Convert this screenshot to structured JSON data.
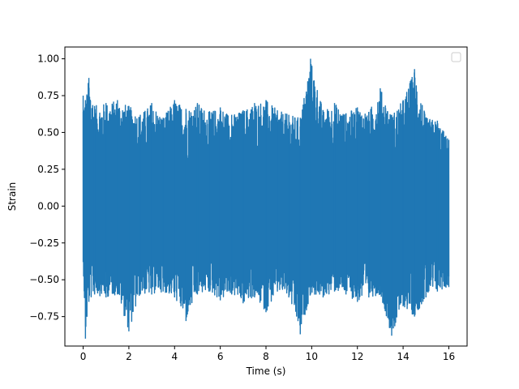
{
  "chart_data": {
    "type": "line",
    "title": "",
    "xlabel": "Time (s)",
    "ylabel": "Strain",
    "xlim": [
      -0.8,
      16.8
    ],
    "ylim": [
      -0.95,
      1.08
    ],
    "x_ticks": [
      0,
      2,
      4,
      6,
      8,
      10,
      12,
      14,
      16
    ],
    "x_tick_labels": [
      "0",
      "2",
      "4",
      "6",
      "8",
      "10",
      "12",
      "14",
      "16"
    ],
    "y_ticks": [
      -0.75,
      -0.5,
      -0.25,
      0.0,
      0.25,
      0.5,
      0.75,
      1.0
    ],
    "y_tick_labels": [
      "−0.75",
      "−0.50",
      "−0.25",
      "0.00",
      "0.25",
      "0.50",
      "0.75",
      "1.00"
    ],
    "grid": false,
    "legend": {
      "placement": "top-right",
      "entries": []
    },
    "line_color": "#1f77b4",
    "series": [
      {
        "x_start": 0.0,
        "x_end": 16.0,
        "description_envelope": {
          "x": [
            0.0,
            0.1,
            0.25,
            0.5,
            1.0,
            1.5,
            2.0,
            2.5,
            3.0,
            3.5,
            4.0,
            4.5,
            5.0,
            5.5,
            6.0,
            6.5,
            7.0,
            7.5,
            8.0,
            8.5,
            9.0,
            9.5,
            9.95,
            10.5,
            11.0,
            11.5,
            12.0,
            12.5,
            13.0,
            13.5,
            14.0,
            14.5,
            15.0,
            15.5,
            16.0
          ],
          "upper": [
            0.75,
            0.72,
            0.87,
            0.68,
            0.7,
            0.72,
            0.68,
            0.62,
            0.7,
            0.6,
            0.72,
            0.66,
            0.7,
            0.64,
            0.67,
            0.62,
            0.65,
            0.7,
            0.72,
            0.65,
            0.62,
            0.6,
            1.0,
            0.65,
            0.7,
            0.63,
            0.67,
            0.64,
            0.8,
            0.62,
            0.72,
            0.93,
            0.6,
            0.58,
            0.45
          ],
          "lower": [
            -0.38,
            -0.9,
            -0.65,
            -0.6,
            -0.62,
            -0.6,
            -0.85,
            -0.6,
            -0.6,
            -0.58,
            -0.62,
            -0.78,
            -0.6,
            -0.58,
            -0.64,
            -0.6,
            -0.66,
            -0.62,
            -0.72,
            -0.58,
            -0.62,
            -0.87,
            -0.6,
            -0.62,
            -0.58,
            -0.6,
            -0.65,
            -0.62,
            -0.6,
            -0.88,
            -0.68,
            -0.75,
            -0.62,
            -0.58,
            -0.55
          ]
        }
      }
    ]
  }
}
